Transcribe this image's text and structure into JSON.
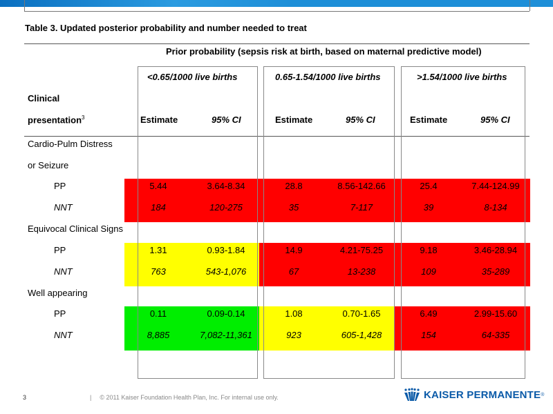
{
  "slide": {
    "page_number": "3",
    "footer_separator": "|",
    "footer_text": "© 2011 Kaiser Foundation Health Plan, Inc. For internal use only.",
    "logo_text": "KAISER PERMANENTE",
    "logo_mark": "®"
  },
  "table": {
    "title": "Table 3.  Updated posterior probability and number needed to treat",
    "prior_header": "Prior probability (sepsis risk at birth, based on maternal predictive model)",
    "groups": [
      "<0.65/1000 live births",
      "0.65-1.54/1000 live births",
      ">1.54/1000 live births"
    ],
    "clinical_label_line1": "Clinical",
    "clinical_label_line2": "presentation",
    "clinical_superscript": "3",
    "subheaders": {
      "estimate": "Estimate",
      "ci": "95% CI"
    },
    "sections": [
      {
        "label_line1": "Cardio-Pulm Distress",
        "label_line2": "or Seizure",
        "rows": [
          {
            "label": "PP",
            "values": [
              "5.44",
              "3.64-8.34",
              "28.8",
              "8.56-142.66",
              "25.4",
              "7.44-124.99"
            ]
          },
          {
            "label": "NNT",
            "values": [
              "184",
              "120-275",
              "35",
              "7-117",
              "39",
              "8-134"
            ]
          }
        ]
      },
      {
        "label_line1": "Equivocal Clinical Signs",
        "rows": [
          {
            "label": "PP",
            "values": [
              "1.31",
              "0.93-1.84",
              "14.9",
              "4.21-75.25",
              "9.18",
              "3.46-28.94"
            ]
          },
          {
            "label": "NNT",
            "values": [
              "763",
              "543-1,076",
              "67",
              "13-238",
              "109",
              "35-289"
            ]
          }
        ]
      },
      {
        "label_line1": "Well appearing",
        "rows": [
          {
            "label": "PP",
            "values": [
              "0.11",
              "0.09-0.14",
              "1.08",
              "0.70-1.65",
              "6.49",
              "2.99-15.60"
            ]
          },
          {
            "label": "NNT",
            "values": [
              "8,885",
              "7,082-11,361",
              "923",
              "605-1,428",
              "154",
              "64-335"
            ]
          }
        ]
      }
    ],
    "highlight_colors": {
      "red": "#ff0000",
      "yellow": "#ffff00",
      "green": "#00ee00"
    }
  }
}
